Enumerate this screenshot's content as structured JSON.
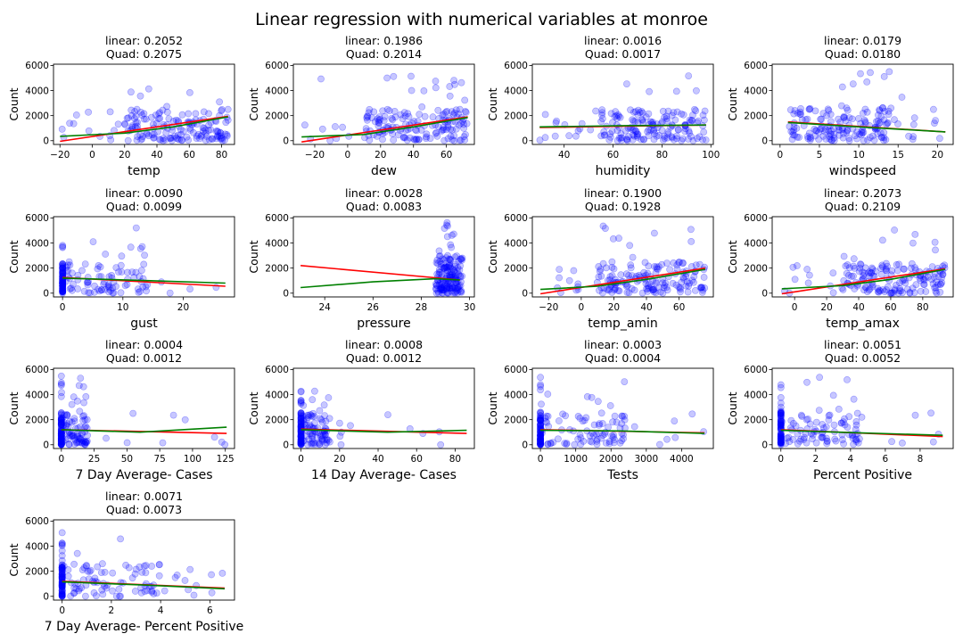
{
  "figure": {
    "title": "Linear regression with numerical variables at monroe",
    "colors": {
      "points": "#0000ff",
      "linear_fit": "#ff0000",
      "quad_fit": "#008000"
    }
  },
  "chart_data": [
    {
      "type": "scatter",
      "title_linear": "linear: 0.2052",
      "title_quad": "Quad: 0.2075",
      "xlabel": "temp",
      "ylabel": "Count",
      "xlim": [
        -24,
        88
      ],
      "ylim": [
        -300,
        6100
      ],
      "xticks": [
        -20,
        0,
        20,
        40,
        60,
        80
      ],
      "yticks": [
        0,
        2000,
        4000,
        6000
      ],
      "cloud": {
        "x_range": [
          -20,
          84
        ],
        "x_dense": [
          20,
          84
        ],
        "y_typical": [
          0,
          2500
        ]
      },
      "linear": [
        [
          -20,
          -50
        ],
        [
          84,
          1950
        ]
      ],
      "quad": [
        [
          -20,
          350
        ],
        [
          20,
          600
        ],
        [
          50,
          1100
        ],
        [
          84,
          1900
        ]
      ]
    },
    {
      "type": "scatter",
      "title_linear": "linear: 0.1986",
      "title_quad": "Quad: 0.2014",
      "xlabel": "dew",
      "ylabel": "Count",
      "xlim": [
        -33,
        77
      ],
      "ylim": [
        -300,
        6100
      ],
      "xticks": [
        -20,
        0,
        20,
        40,
        60
      ],
      "yticks": [
        0,
        2000,
        4000,
        6000
      ],
      "cloud": {
        "x_range": [
          -28,
          73
        ],
        "x_dense": [
          10,
          73
        ],
        "y_typical": [
          0,
          2500
        ]
      },
      "linear": [
        [
          -28,
          -100
        ],
        [
          73,
          1900
        ]
      ],
      "quad": [
        [
          -28,
          300
        ],
        [
          10,
          500
        ],
        [
          40,
          1100
        ],
        [
          73,
          1850
        ]
      ]
    },
    {
      "type": "scatter",
      "title_linear": "linear: 0.0016",
      "title_quad": "Quad: 0.0017",
      "xlabel": "humidity",
      "ylabel": "Count",
      "xlim": [
        27,
        101
      ],
      "ylim": [
        -300,
        6100
      ],
      "xticks": [
        40,
        60,
        80,
        100
      ],
      "yticks": [
        0,
        2000,
        4000,
        6000
      ],
      "cloud": {
        "x_range": [
          30,
          98
        ],
        "x_dense": [
          55,
          98
        ],
        "y_typical": [
          0,
          2500
        ]
      },
      "linear": [
        [
          30,
          1050
        ],
        [
          98,
          1250
        ]
      ],
      "quad": [
        [
          30,
          1100
        ],
        [
          65,
          1200
        ],
        [
          98,
          1250
        ]
      ]
    },
    {
      "type": "scatter",
      "title_linear": "linear: 0.0179",
      "title_quad": "Quad: 0.0180",
      "xlabel": "windspeed",
      "ylabel": "Count",
      "xlim": [
        -1,
        22
      ],
      "ylim": [
        -300,
        6100
      ],
      "xticks": [
        0,
        5,
        10,
        15,
        20
      ],
      "yticks": [
        0,
        2000,
        4000,
        6000
      ],
      "cloud": {
        "x_range": [
          1,
          21
        ],
        "x_dense": [
          1,
          14
        ],
        "y_typical": [
          0,
          2600
        ]
      },
      "linear": [
        [
          1,
          1500
        ],
        [
          21,
          700
        ]
      ],
      "quad": [
        [
          1,
          1450
        ],
        [
          10,
          1100
        ],
        [
          21,
          700
        ]
      ]
    },
    {
      "type": "scatter",
      "title_linear": "linear: 0.0090",
      "title_quad": "Quad: 0.0099",
      "xlabel": "gust",
      "ylabel": "Count",
      "xlim": [
        -1.5,
        28.5
      ],
      "ylim": [
        -300,
        6100
      ],
      "xticks": [
        0,
        10,
        20
      ],
      "yticks": [
        0,
        2000,
        4000,
        6000
      ],
      "cloud": {
        "x_range": [
          0,
          27
        ],
        "x_dense": [
          0,
          14
        ],
        "y_typical": [
          0,
          2400
        ],
        "stack_x": 0
      },
      "linear": [
        [
          0,
          1250
        ],
        [
          27,
          550
        ]
      ],
      "quad": [
        [
          0,
          1200
        ],
        [
          14,
          1000
        ],
        [
          27,
          800
        ]
      ]
    },
    {
      "type": "scatter",
      "title_linear": "linear: 0.0028",
      "title_quad": "Quad: 0.0083",
      "xlabel": "pressure",
      "ylabel": "Count",
      "xlim": [
        22.7,
        30.2
      ],
      "ylim": [
        -300,
        6100
      ],
      "xticks": [
        24,
        26,
        28,
        30
      ],
      "yticks": [
        0,
        2000,
        4000,
        6000
      ],
      "cloud": {
        "x_range": [
          28.6,
          29.7
        ],
        "x_dense": [
          28.6,
          29.7
        ],
        "y_typical": [
          0,
          3000
        ]
      },
      "linear": [
        [
          23,
          2200
        ],
        [
          29.6,
          1050
        ]
      ],
      "quad": [
        [
          23,
          450
        ],
        [
          26,
          900
        ],
        [
          28.6,
          1150
        ],
        [
          29.6,
          1050
        ]
      ]
    },
    {
      "type": "scatter",
      "title_linear": "linear: 0.1900",
      "title_quad": "Quad: 0.1928",
      "xlabel": "temp_amin",
      "ylabel": "Count",
      "xlim": [
        -30,
        81
      ],
      "ylim": [
        -300,
        6100
      ],
      "xticks": [
        -20,
        0,
        20,
        40,
        60
      ],
      "yticks": [
        0,
        2000,
        4000,
        6000
      ],
      "cloud": {
        "x_range": [
          -25,
          76
        ],
        "x_dense": [
          10,
          76
        ],
        "y_typical": [
          0,
          2500
        ]
      },
      "linear": [
        [
          -25,
          -50
        ],
        [
          76,
          2000
        ]
      ],
      "quad": [
        [
          -25,
          300
        ],
        [
          10,
          550
        ],
        [
          40,
          1100
        ],
        [
          76,
          1900
        ]
      ]
    },
    {
      "type": "scatter",
      "title_linear": "linear: 0.2073",
      "title_quad": "Quad: 0.2109",
      "xlabel": "temp_amax",
      "ylabel": "Count",
      "xlim": [
        -14,
        99
      ],
      "ylim": [
        -300,
        6100
      ],
      "xticks": [
        0,
        20,
        40,
        60,
        80
      ],
      "yticks": [
        0,
        2000,
        4000,
        6000
      ],
      "cloud": {
        "x_range": [
          -8,
          94
        ],
        "x_dense": [
          30,
          94
        ],
        "y_typical": [
          0,
          2500
        ]
      },
      "linear": [
        [
          -8,
          -50
        ],
        [
          94,
          1950
        ]
      ],
      "quad": [
        [
          -8,
          350
        ],
        [
          30,
          600
        ],
        [
          60,
          1100
        ],
        [
          94,
          1900
        ]
      ]
    },
    {
      "type": "scatter",
      "title_linear": "linear: 0.0004",
      "title_quad": "Quad: 0.0012",
      "xlabel": "7 Day Average- Cases",
      "ylabel": "Count",
      "xlim": [
        -6,
        132
      ],
      "ylim": [
        -300,
        6100
      ],
      "xticks": [
        0,
        25,
        50,
        75,
        100,
        125
      ],
      "yticks": [
        0,
        2000,
        4000,
        6000
      ],
      "cloud": {
        "x_range": [
          0,
          126
        ],
        "x_dense": [
          0,
          20
        ],
        "y_typical": [
          0,
          2600
        ],
        "stack_x": 0
      },
      "linear": [
        [
          0,
          1200
        ],
        [
          126,
          900
        ]
      ],
      "quad": [
        [
          0,
          1200
        ],
        [
          60,
          1000
        ],
        [
          126,
          1400
        ]
      ]
    },
    {
      "type": "scatter",
      "title_linear": "linear: 0.0008",
      "title_quad": "Quad: 0.0012",
      "xlabel": "14 Day Average- Cases",
      "ylabel": "Count",
      "xlim": [
        -4,
        90
      ],
      "ylim": [
        -300,
        6100
      ],
      "xticks": [
        0,
        20,
        40,
        60,
        80
      ],
      "yticks": [
        0,
        2000,
        4000,
        6000
      ],
      "cloud": {
        "x_range": [
          0,
          86
        ],
        "x_dense": [
          0,
          15
        ],
        "y_typical": [
          0,
          2600
        ],
        "stack_x": 0
      },
      "linear": [
        [
          0,
          1250
        ],
        [
          86,
          900
        ]
      ],
      "quad": [
        [
          0,
          1200
        ],
        [
          45,
          1000
        ],
        [
          86,
          1150
        ]
      ]
    },
    {
      "type": "scatter",
      "title_linear": "linear: 0.0003",
      "title_quad": "Quad: 0.0004",
      "xlabel": "Tests",
      "ylabel": "Count",
      "xlim": [
        -230,
        4900
      ],
      "ylim": [
        -300,
        6100
      ],
      "xticks": [
        0,
        1000,
        2000,
        3000,
        4000
      ],
      "yticks": [
        0,
        2000,
        4000,
        6000
      ],
      "cloud": {
        "x_range": [
          0,
          4650
        ],
        "x_dense": [
          0,
          2400
        ],
        "y_typical": [
          0,
          2600
        ],
        "stack_x": 0
      },
      "linear": [
        [
          0,
          1200
        ],
        [
          4650,
          950
        ]
      ],
      "quad": [
        [
          0,
          1150
        ],
        [
          2300,
          1100
        ],
        [
          4650,
          900
        ]
      ]
    },
    {
      "type": "scatter",
      "title_linear": "linear: 0.0051",
      "title_quad": "Quad: 0.0052",
      "xlabel": "Percent Positive",
      "ylabel": "Count",
      "xlim": [
        -0.5,
        9.9
      ],
      "ylim": [
        -300,
        6100
      ],
      "xticks": [
        0,
        2,
        4,
        6,
        8
      ],
      "yticks": [
        0,
        2000,
        4000,
        6000
      ],
      "cloud": {
        "x_range": [
          0,
          9.3
        ],
        "x_dense": [
          0,
          5
        ],
        "y_typical": [
          0,
          2600
        ],
        "stack_x": 0
      },
      "linear": [
        [
          0,
          1200
        ],
        [
          9.3,
          650
        ]
      ],
      "quad": [
        [
          0,
          1150
        ],
        [
          4.5,
          950
        ],
        [
          9.3,
          750
        ]
      ]
    },
    {
      "type": "scatter",
      "title_linear": "linear: 0.0071",
      "title_quad": "Quad: 0.0073",
      "xlabel": "7 Day Average- Percent Positive",
      "ylabel": "Count",
      "xlim": [
        -0.35,
        7.0
      ],
      "ylim": [
        -300,
        6100
      ],
      "xticks": [
        0,
        2,
        4,
        6
      ],
      "yticks": [
        0,
        2000,
        4000,
        6000
      ],
      "cloud": {
        "x_range": [
          0,
          6.6
        ],
        "x_dense": [
          0,
          4
        ],
        "y_typical": [
          0,
          2600
        ],
        "stack_x": 0
      },
      "linear": [
        [
          0,
          1200
        ],
        [
          6.6,
          650
        ]
      ],
      "quad": [
        [
          0,
          1150
        ],
        [
          3.3,
          900
        ],
        [
          6.6,
          600
        ]
      ]
    }
  ]
}
